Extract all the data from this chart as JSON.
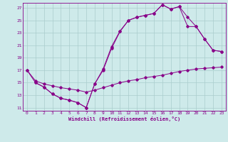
{
  "xlabel": "Windchill (Refroidissement éolien,°C)",
  "bg_color": "#ceeaea",
  "line_color": "#880088",
  "grid_color": "#aacccc",
  "xlim": [
    -0.5,
    23.5
  ],
  "ylim": [
    10.5,
    27.8
  ],
  "yticks": [
    11,
    13,
    15,
    17,
    19,
    21,
    23,
    25,
    27
  ],
  "xticks": [
    0,
    1,
    2,
    3,
    4,
    5,
    6,
    7,
    8,
    9,
    10,
    11,
    12,
    13,
    14,
    15,
    16,
    17,
    18,
    19,
    20,
    21,
    22,
    23
  ],
  "line1_x": [
    0,
    1,
    2,
    3,
    4,
    5,
    6,
    7,
    8,
    9,
    10,
    11,
    12,
    13,
    14,
    15,
    16,
    17,
    18,
    19,
    20,
    21,
    22,
    23
  ],
  "line1_y": [
    17.0,
    15.0,
    14.3,
    13.2,
    12.5,
    12.2,
    11.8,
    11.0,
    14.8,
    17.0,
    20.5,
    23.2,
    25.0,
    25.5,
    25.8,
    26.1,
    27.5,
    26.8,
    27.2,
    25.5,
    24.0,
    22.0,
    20.2,
    20.0
  ],
  "line2_x": [
    0,
    1,
    2,
    3,
    4,
    5,
    6,
    7,
    8,
    9,
    10,
    11,
    12,
    13,
    14,
    15,
    16,
    17,
    18,
    19,
    20,
    21,
    22,
    23
  ],
  "line2_y": [
    17.0,
    15.3,
    14.8,
    14.5,
    14.2,
    14.0,
    13.8,
    13.5,
    13.8,
    14.2,
    14.6,
    15.0,
    15.3,
    15.5,
    15.8,
    16.0,
    16.2,
    16.5,
    16.8,
    17.0,
    17.2,
    17.3,
    17.4,
    17.5
  ],
  "line3_x": [
    1,
    2,
    3,
    4,
    5,
    6,
    7,
    8,
    9,
    10,
    11,
    12,
    13,
    14,
    15,
    16,
    17,
    18,
    19,
    20,
    21,
    22,
    23
  ],
  "line3_y": [
    15.0,
    14.3,
    13.2,
    12.5,
    12.2,
    11.8,
    11.0,
    14.8,
    17.2,
    20.8,
    23.3,
    25.0,
    25.5,
    25.8,
    26.1,
    27.5,
    26.8,
    27.2,
    24.0,
    24.0,
    22.0,
    20.2,
    20.0
  ]
}
